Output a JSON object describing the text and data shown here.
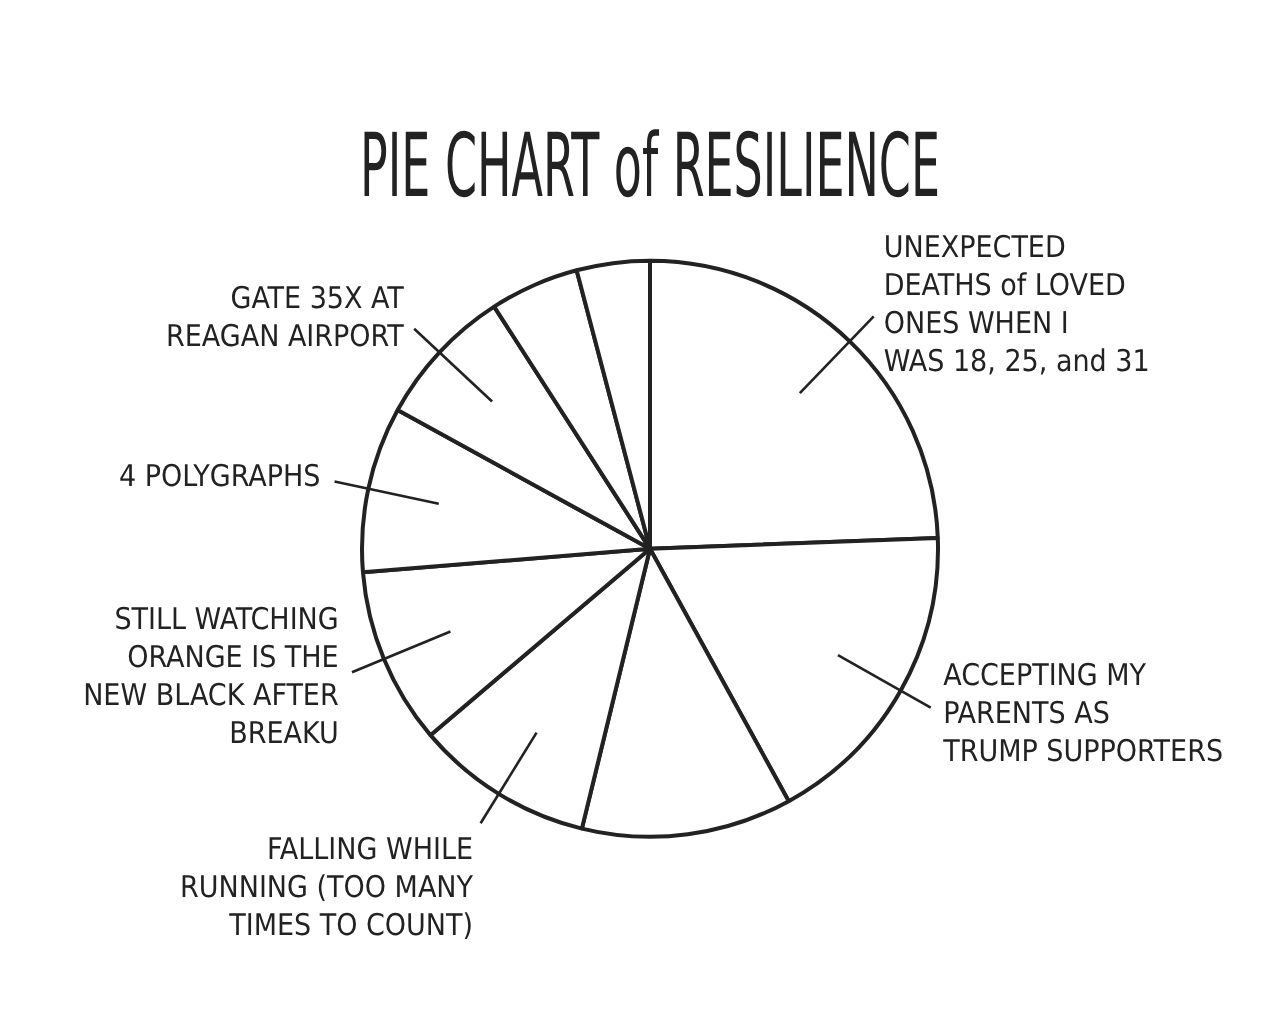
{
  "chart_data": {
    "type": "pie",
    "title": "PIE CHART of RESILIENCE",
    "categories": [
      "UNEXPECTED\nDEATHS of LOVED\nONES WHEN I\nWAS 18, 25, and 31",
      "ACCEPTING MY\nPARENTS AS\nTRUMP SUPPORTERS",
      null,
      "FALLING WHILE\nRUNNING (TOO MANY\nTIMES TO COUNT)",
      "STILL WATCHING\nORANGE IS THE\nNEW BLACK AFTER\nBREAKU",
      "4 POLYGRAPHS",
      "GATE 35X AT\nREAGAN AIRPORT",
      null,
      null
    ],
    "values": [
      24.4,
      17.6,
      11.8,
      10,
      9.9,
      9.3,
      7.9,
      5,
      4.1
    ],
    "colors": [
      "#ffffff",
      "#ffffff",
      "#ffffff",
      "#ffffff",
      "#ffffff",
      "#ffffff",
      "#ffffff",
      "#ffffff",
      "#ffffff"
    ],
    "legend": false
  }
}
